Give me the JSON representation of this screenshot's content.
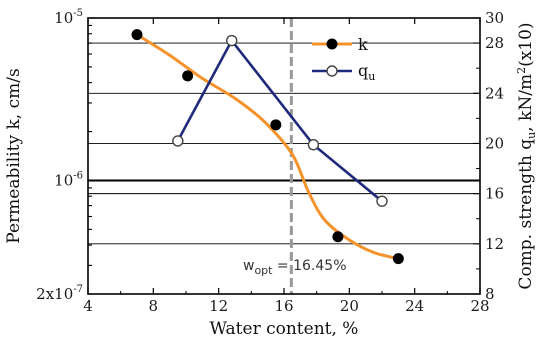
{
  "chart_data": {
    "type": "line",
    "title": "",
    "xlabel": "Water content, %",
    "ylabel_left": "Permeability k, cm/s",
    "ylabel_right": "Comp. strength q",
    "ylabel_right_sub": "u",
    "ylabel_right_suffix": ", kN/m",
    "ylabel_right_sup": "2",
    "ylabel_right_tail": "(x10)",
    "xlim": [
      4,
      28
    ],
    "x_ticks": [
      4,
      8,
      12,
      16,
      20,
      24,
      28
    ],
    "x_tick_labels": [
      "4",
      "8",
      "12",
      "16",
      "20",
      "24",
      "28"
    ],
    "y_left_scale": "log",
    "y_left_lim": [
      2e-07,
      1e-05
    ],
    "y_left_major_ticks": [
      {
        "value": 1e-05,
        "mant": "10",
        "exp": "-5"
      },
      {
        "value": 1e-06,
        "mant": "10",
        "exp": "-6"
      },
      {
        "value": 2e-07,
        "mant": "2x10",
        "exp": "-7"
      }
    ],
    "y_right_lim": [
      8,
      30
    ],
    "y_right_ticks": [
      8,
      12,
      16,
      20,
      24,
      28,
      30
    ],
    "y_right_tick_labels": [
      "8",
      "12",
      "16",
      "20",
      "24",
      "28",
      "30"
    ],
    "grid_horizontal_right_values": [
      12,
      16,
      20,
      24,
      28
    ],
    "series": [
      {
        "name": "k",
        "axis": "left",
        "color": "#f5922b",
        "marker": "filled-circle",
        "points": [
          {
            "x": 7.0,
            "y": 7.9e-06
          },
          {
            "x": 10.1,
            "y": 4.4e-06
          },
          {
            "x": 15.5,
            "y": 2.2e-06
          },
          {
            "x": 19.3,
            "y": 4.5e-07
          },
          {
            "x": 23.0,
            "y": 3.3e-07
          }
        ],
        "curve": [
          {
            "x": 7.0,
            "y": 7.9e-06
          },
          {
            "x": 9.0,
            "y": 5.9e-06
          },
          {
            "x": 11.0,
            "y": 4.25e-06
          },
          {
            "x": 13.0,
            "y": 3.2e-06
          },
          {
            "x": 14.8,
            "y": 2.3e-06
          },
          {
            "x": 16.5,
            "y": 1.45e-06
          },
          {
            "x": 17.5,
            "y": 8.5e-07
          },
          {
            "x": 18.5,
            "y": 5.7e-07
          },
          {
            "x": 20.0,
            "y": 4.3e-07
          },
          {
            "x": 21.5,
            "y": 3.6e-07
          },
          {
            "x": 23.0,
            "y": 3.3e-07
          }
        ]
      },
      {
        "name": "q",
        "name_sub": "u",
        "axis": "right",
        "color": "#1f2a7a",
        "marker": "open-circle",
        "points": [
          {
            "x": 9.5,
            "y": 20.2
          },
          {
            "x": 12.8,
            "y": 28.2
          },
          {
            "x": 17.8,
            "y": 19.9
          },
          {
            "x": 22.0,
            "y": 15.4
          }
        ]
      }
    ],
    "annotation": {
      "x": 16.45,
      "label_main": "w",
      "label_sub": "opt",
      "label_value": " = 16.45%",
      "line_color": "#999999"
    },
    "legend": {
      "placement": "top-right"
    }
  }
}
